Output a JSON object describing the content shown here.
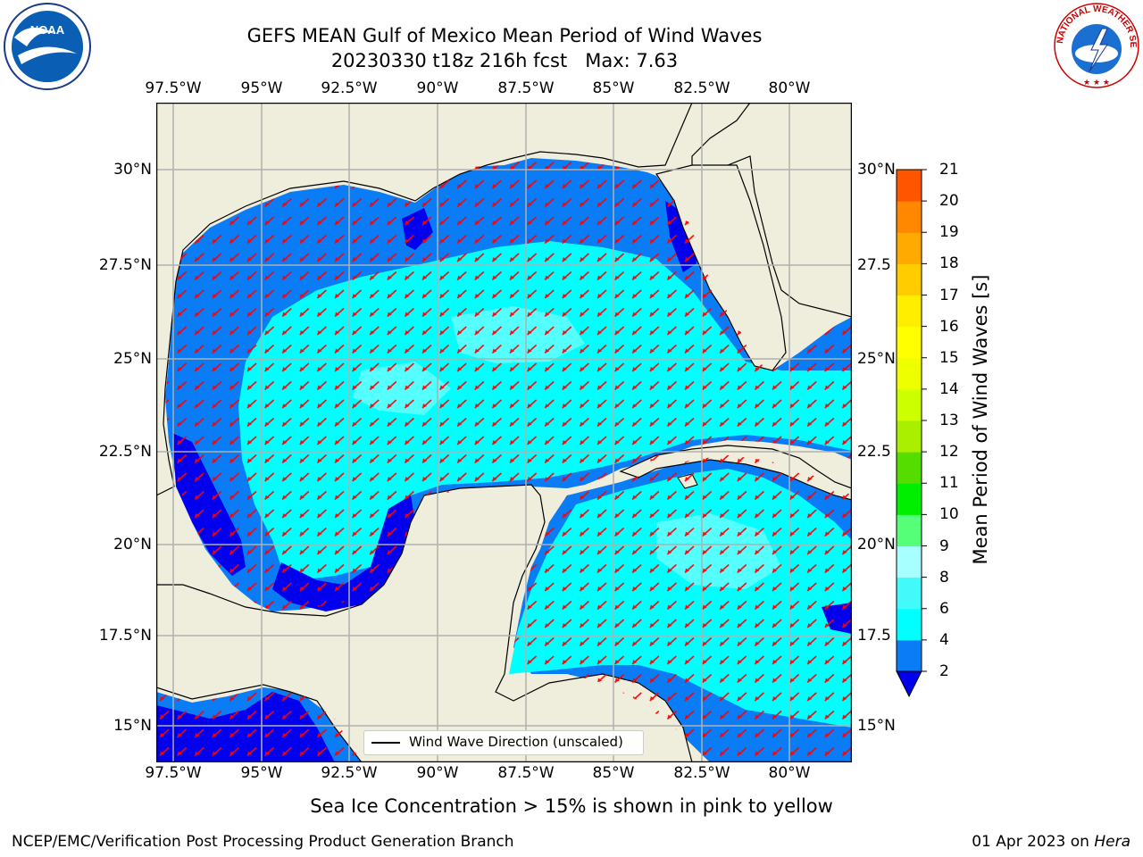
{
  "title": {
    "line1": "GEFS MEAN Gulf of Mexico Mean Period of Wind Waves",
    "line2": "20230330 t18z 216h fcst   Max: 7.63"
  },
  "lon_ticks": [
    "97.5°W",
    "95°W",
    "92.5°W",
    "90°W",
    "87.5°W",
    "85°W",
    "82.5°W",
    "80°W"
  ],
  "lat_ticks_left": [
    "30°N",
    "27.5°N",
    "25°N",
    "22.5°N",
    "20°N",
    "17.5°N",
    "15°N"
  ],
  "lat_ticks_right": [
    "30°N",
    "27.5",
    "25°N",
    "22.5",
    "20°N",
    "17.5",
    "15°N"
  ],
  "legend": {
    "label": "Wind Wave Direction (unscaled)"
  },
  "colorbar": {
    "label": "Mean Period of Wind Waves [s]",
    "ticks": [
      "2",
      "4",
      "6",
      "8",
      "9",
      "10",
      "11",
      "12",
      "13",
      "14",
      "15",
      "16",
      "17",
      "18",
      "19",
      "20",
      "21"
    ],
    "colors": [
      "#0a7cf6",
      "#00ffff",
      "#44f9f9",
      "#a8ffff",
      "#55ff77",
      "#00ee00",
      "#55dd00",
      "#aaee00",
      "#ccff00",
      "#eeff00",
      "#ffff00",
      "#ffee00",
      "#ffcc00",
      "#ffaa00",
      "#ff8800",
      "#ff5500",
      "#ff2200",
      "#ff0000"
    ],
    "under_color": "#0000ee"
  },
  "map_colors": {
    "land": "#efeedd",
    "grid": "#b0b0b0",
    "arrow": "#ff0000",
    "wave_low": "#0000ee",
    "wave_2_4": "#0a7cf6",
    "wave_4_6": "#00ffff",
    "wave_6_8": "#55ffff"
  },
  "note": "Sea Ice Concentration > 15% is shown in pink to yellow",
  "footer": {
    "left": "NCEP/EMC/Verification Post Processing Product Generation Branch",
    "right_prefix": "01 Apr 2023 on ",
    "right_host": "Hera"
  },
  "logos": {
    "left": "NOAA",
    "right_arc": "NATIONAL WEATHER SERVICE"
  }
}
